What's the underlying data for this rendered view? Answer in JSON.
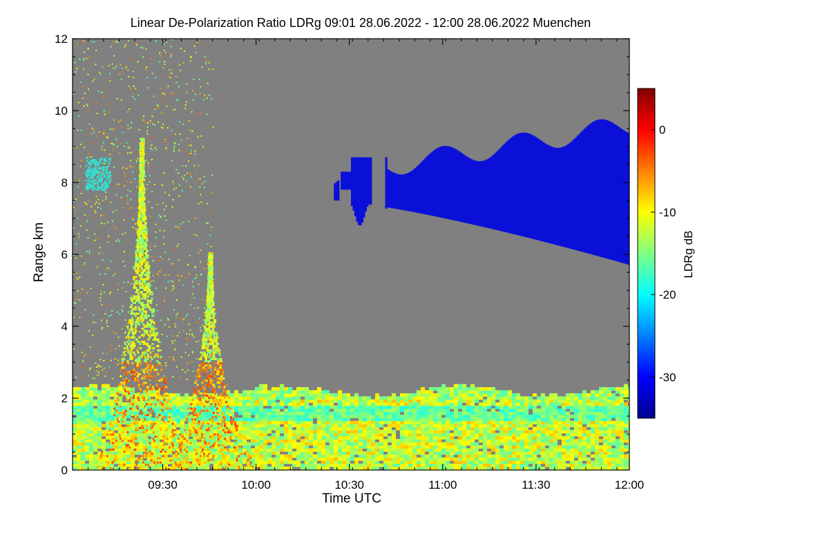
{
  "chart_data": {
    "type": "heatmap",
    "title": "Linear De-Polarization Ratio LDRg   09:01 28.06.2022 - 12:00 28.06.2022 Muenchen",
    "xlabel": "Time UTC",
    "ylabel": "Range km",
    "x_range_minutes_utc": [
      541,
      720
    ],
    "xlim": [
      "09:01",
      "12:00"
    ],
    "ylim": [
      0,
      12
    ],
    "x_ticks": [
      {
        "label": "09:30",
        "value": 570
      },
      {
        "label": "10:00",
        "value": 600
      },
      {
        "label": "10:30",
        "value": 630
      },
      {
        "label": "11:00",
        "value": 660
      },
      {
        "label": "11:30",
        "value": 690
      },
      {
        "label": "12:00",
        "value": 720
      }
    ],
    "y_ticks": [
      {
        "label": "0",
        "value": 0
      },
      {
        "label": "2",
        "value": 2
      },
      {
        "label": "4",
        "value": 4
      },
      {
        "label": "6",
        "value": 6
      },
      {
        "label": "8",
        "value": 8
      },
      {
        "label": "10",
        "value": 10
      },
      {
        "label": "12",
        "value": 12
      }
    ],
    "colorbar": {
      "label": "LDRg dB",
      "range": [
        -35,
        5
      ],
      "ticks": [
        {
          "label": "0",
          "value": 0
        },
        {
          "label": "-10",
          "value": -10
        },
        {
          "label": "-20",
          "value": -20
        },
        {
          "label": "-30",
          "value": -30
        }
      ],
      "colormap": "jet"
    },
    "colors": {
      "background_no_data": "#808080",
      "cirrus": "#0a10d8",
      "aerosol_layer": "#33e0d0",
      "boundary_layer": "#d8f040",
      "plume_core": "#f0a020"
    },
    "features": {
      "boundary_layer": {
        "description_values": {
          "top_km": 2.2,
          "ldr_db": -10
        }
      },
      "cirrus_cloud": {
        "time_start": "10:25",
        "time_end": "12:00",
        "base_km": [
          5.7,
          7.5
        ],
        "top_km": [
          8.2,
          9.6
        ],
        "ldr_db": -33
      },
      "plumes": [
        {
          "time_center": "09:23",
          "top_km": 9.2
        },
        {
          "time_center": "09:45",
          "top_km": 6.0
        }
      ]
    }
  }
}
